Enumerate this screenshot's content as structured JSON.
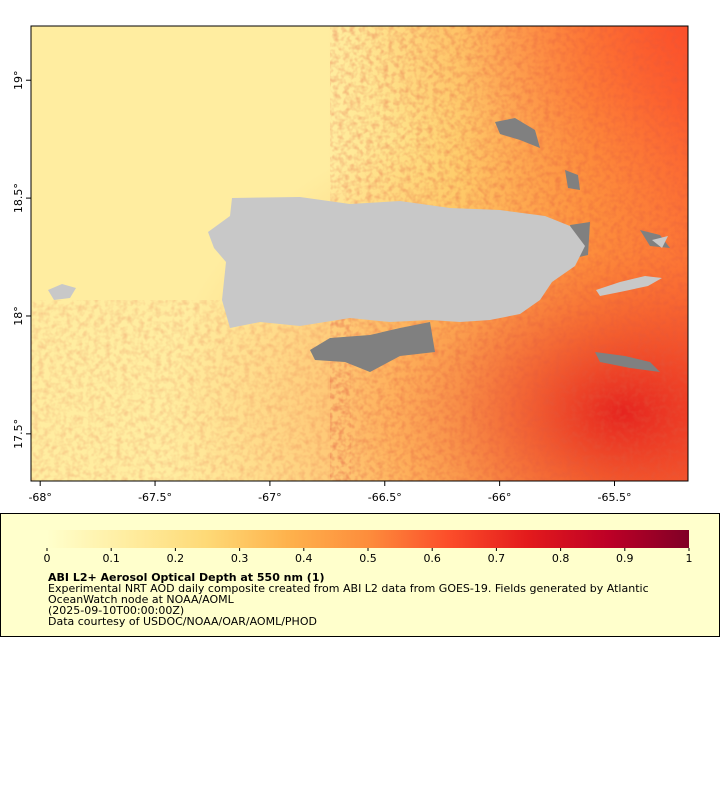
{
  "map": {
    "xlim": [
      -68.04,
      -65.18
    ],
    "ylim": [
      17.3,
      19.23
    ],
    "xticks": [
      {
        "value": -68,
        "label": "-68°"
      },
      {
        "value": -67.5,
        "label": "-67.5°"
      },
      {
        "value": -67,
        "label": "-67°"
      },
      {
        "value": -66.5,
        "label": "-66.5°"
      },
      {
        "value": -66,
        "label": "-66°"
      },
      {
        "value": -65.5,
        "label": "-65.5°"
      }
    ],
    "yticks": [
      {
        "value": 17.5,
        "label": "17.5°"
      },
      {
        "value": 18,
        "label": "18°"
      },
      {
        "value": 18.5,
        "label": "18.5°"
      },
      {
        "value": 19,
        "label": "19°"
      }
    ],
    "land_color": "#c8c8c8",
    "no_data_color": "#808080"
  },
  "legend": {
    "scale": [
      0,
      1
    ],
    "ticks": [
      0,
      0.1,
      0.2,
      0.3,
      0.4,
      0.5,
      0.6,
      0.7,
      0.8,
      0.9,
      1
    ],
    "colors": [
      "#ffffcc",
      "#ffeda0",
      "#fed976",
      "#feb24c",
      "#fd8d3c",
      "#fc4e2a",
      "#e31a1c",
      "#bd0026",
      "#800026"
    ],
    "title": "ABI L2+ Aerosol Optical Depth at 550 nm (1)",
    "lines": [
      "Experimental NRT AOD daily composite created from ABI L2 data from GOES-19. Fields generated by Atlantic",
      "OceanWatch node at NOAA/AOML",
      "(2025-09-10T00:00:00Z)",
      "Data courtesy of USDOC/NOAA/OAR/AOML/PHOD"
    ]
  }
}
